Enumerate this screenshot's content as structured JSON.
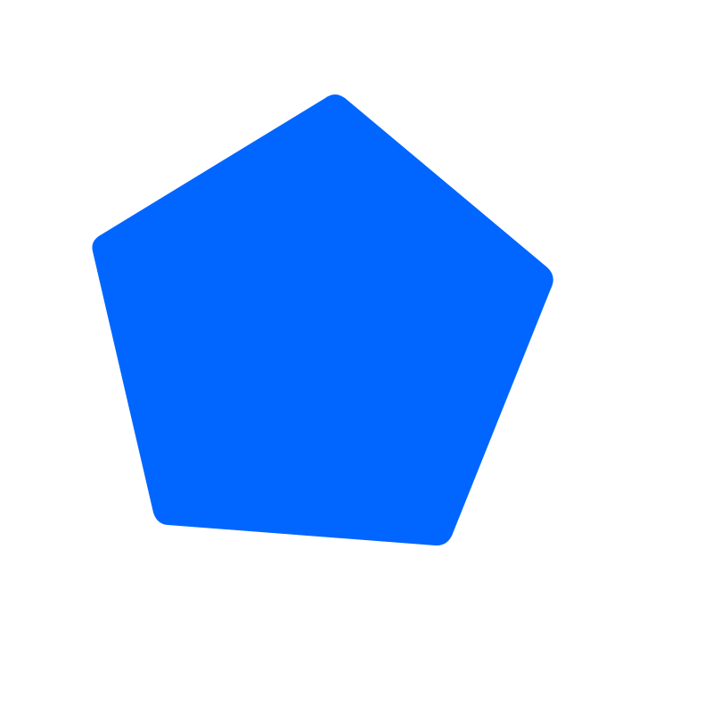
{
  "canvas": {
    "background_color": "#ffffff"
  },
  "shape": {
    "type": "pentagon",
    "fill_color": "#0066ff",
    "corners": "rounded"
  }
}
